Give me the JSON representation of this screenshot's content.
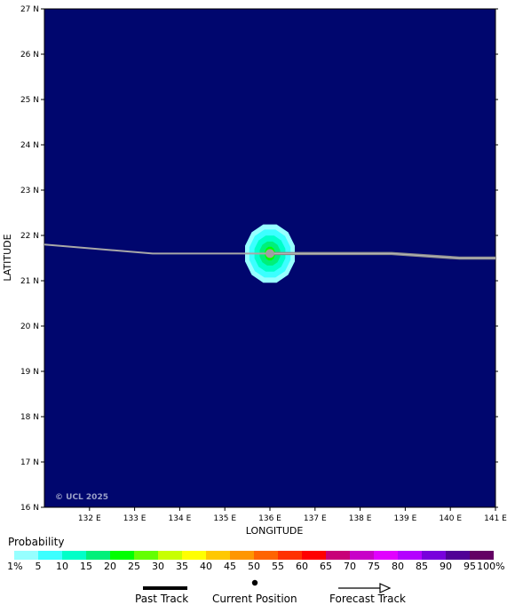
{
  "map": {
    "lat_labels": [
      "27 N",
      "26 N",
      "25 N",
      "24 N",
      "23 N",
      "22 N",
      "21 N",
      "20 N",
      "19 N",
      "18 N",
      "17 N",
      "16 N"
    ],
    "lon_labels": [
      "132 E",
      "133 E",
      "134 E",
      "135 E",
      "136 E",
      "137 E",
      "138 E",
      "139 E",
      "140 E",
      "141 E"
    ],
    "x_axis_title": "LONGITUDE",
    "y_axis_title": "LATITUDE",
    "watermark": "© UCL 2025",
    "background_color": "#00066e",
    "current_position": {
      "lat": 21.6,
      "lon": 136.0
    },
    "past_track": [
      {
        "lat": 21.8,
        "lon": 131.0
      },
      {
        "lat": 21.6,
        "lon": 133.4
      },
      {
        "lat": 21.6,
        "lon": 136.0
      }
    ],
    "forecast_track": [
      {
        "lat": 21.6,
        "lon": 136.0
      },
      {
        "lat": 21.6,
        "lon": 137.3
      },
      {
        "lat": 21.6,
        "lon": 138.7
      },
      {
        "lat": 21.5,
        "lon": 140.2
      },
      {
        "lat": 21.5,
        "lon": 141.0
      }
    ]
  },
  "legend": {
    "probability_title": "Probability",
    "colorbar_colors": [
      "#96ffff",
      "#3cffff",
      "#00ffc8",
      "#00f07a",
      "#00ff00",
      "#64ff00",
      "#c8ff00",
      "#ffff00",
      "#ffc800",
      "#ff9600",
      "#ff6400",
      "#ff3200",
      "#ff0000",
      "#c80078",
      "#c800c8",
      "#e100ff",
      "#b400ff",
      "#7800dc",
      "#500096",
      "#640064"
    ],
    "colorbar_labels": [
      "1%",
      "5",
      "10",
      "15",
      "20",
      "25",
      "30",
      "35",
      "40",
      "45",
      "50",
      "55",
      "60",
      "65",
      "70",
      "75",
      "80",
      "85",
      "90",
      "95",
      "100%"
    ],
    "past_track_label": "Past Track",
    "current_position_label": "Current Position",
    "forecast_track_label": "Forecast Track"
  }
}
